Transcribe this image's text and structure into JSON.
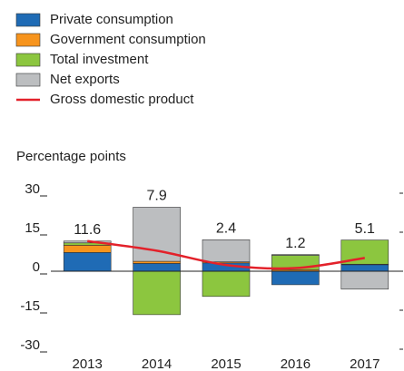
{
  "chart_data": {
    "type": "stacked_bar_line",
    "y_axis_label": "Percentage points",
    "categories": [
      "2013",
      "2014",
      "2015",
      "2016",
      "2017"
    ],
    "series": [
      {
        "name": "Private consumption",
        "color": "#1f6bb5",
        "values": [
          7.2,
          3.0,
          3.2,
          -5.2,
          2.5
        ]
      },
      {
        "name": "Government consumption",
        "color": "#f7941d",
        "values": [
          2.8,
          0.8,
          0.4,
          0.6,
          0.2
        ]
      },
      {
        "name": "Total investment",
        "color": "#8cc63f",
        "values": [
          0.9,
          -16.7,
          -9.7,
          5.5,
          9.3
        ]
      },
      {
        "name": "Net exports",
        "color": "#bcbec0",
        "values": [
          0.7,
          20.8,
          8.5,
          0.3,
          -6.9
        ]
      }
    ],
    "line": {
      "name": "Gross domestic product",
      "color": "#e3212a",
      "values": [
        11.6,
        7.9,
        2.4,
        1.2,
        5.1
      ]
    },
    "ylim": [
      -30,
      30
    ],
    "yticks": [
      -30,
      -15,
      0,
      15,
      30
    ]
  }
}
